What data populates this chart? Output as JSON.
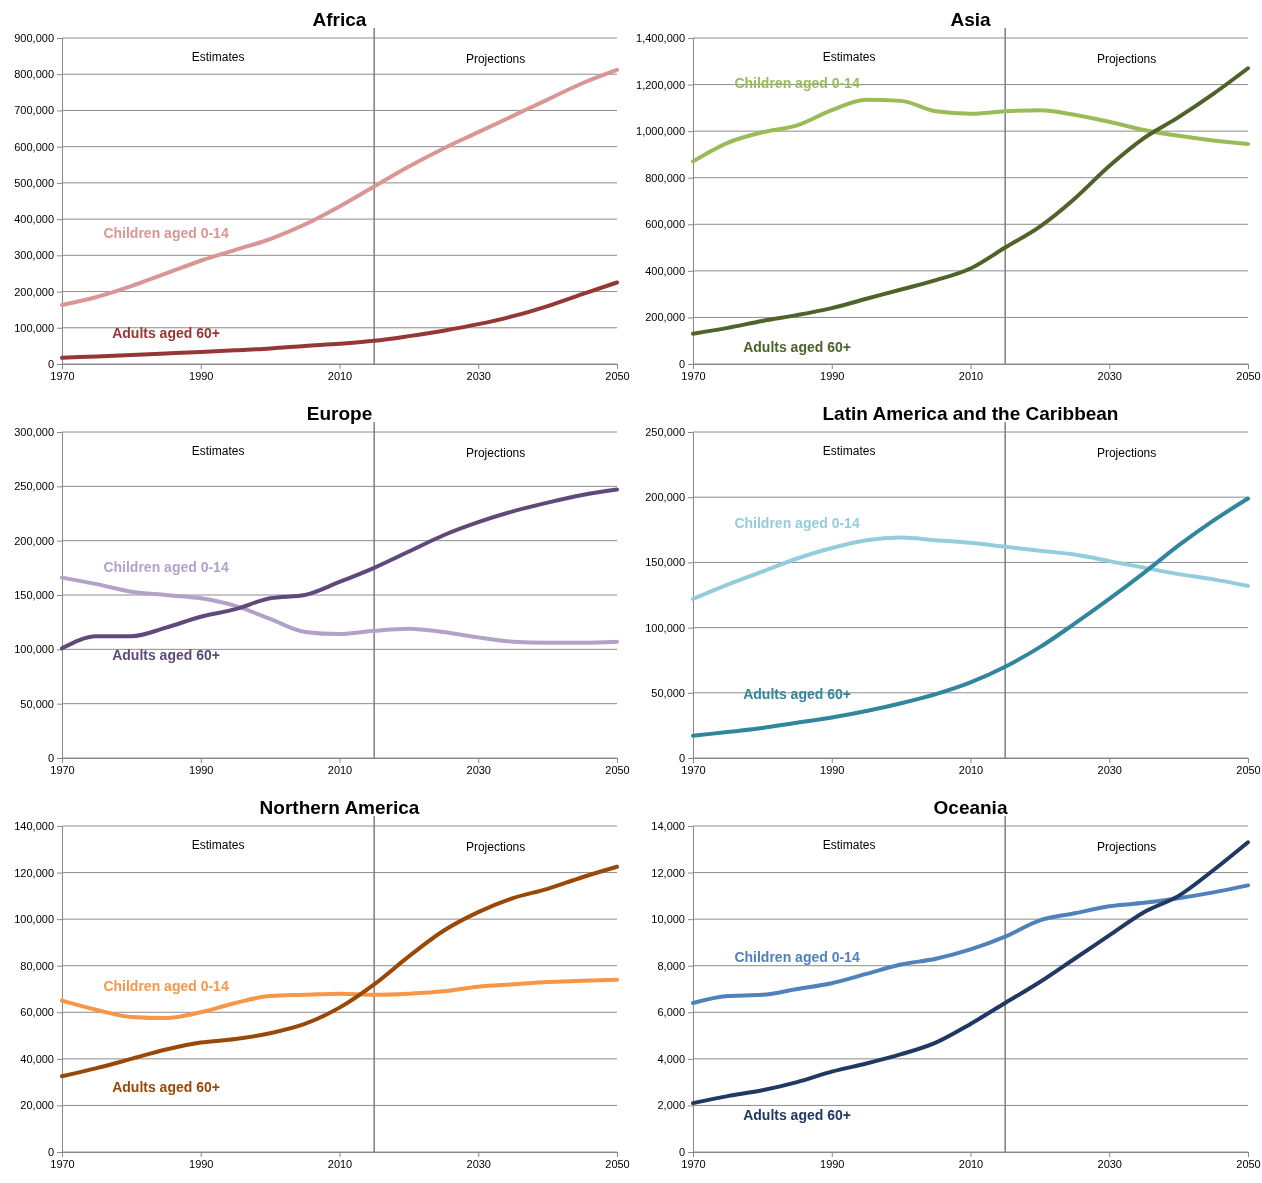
{
  "chart_data": [
    {
      "type": "line",
      "title": "Africa",
      "x": [
        1970,
        1975,
        1980,
        1985,
        1990,
        1995,
        2000,
        2005,
        2010,
        2015,
        2020,
        2025,
        2030,
        2035,
        2040,
        2045,
        2050
      ],
      "xlim": [
        1970,
        2050
      ],
      "xticks": [
        1970,
        1990,
        2010,
        2030,
        2050
      ],
      "ylim": [
        0,
        900000
      ],
      "yticks": [
        {
          "value": 0,
          "label": "0"
        },
        {
          "value": 100000,
          "label": "100,000"
        },
        {
          "value": 200000,
          "label": "200,000"
        },
        {
          "value": 300000,
          "label": "300,000"
        },
        {
          "value": 400000,
          "label": "400,000"
        },
        {
          "value": 500000,
          "label": "500,000"
        },
        {
          "value": 600000,
          "label": "600,000"
        },
        {
          "value": 700000,
          "label": "700,000"
        },
        {
          "value": 800000,
          "label": "800,000"
        },
        {
          "value": 900000,
          "label": "900,000"
        }
      ],
      "grid": "y",
      "legend": false,
      "marker": "none",
      "line_style": "solid",
      "ref_lines": [
        {
          "axis": "x",
          "value": 2015,
          "color": "#7f7f7f"
        }
      ],
      "annotations": [
        "Estimates",
        "Projections"
      ],
      "series": [
        {
          "name": "Children aged 0-14",
          "color": "#d99694",
          "values": [
            163000,
            185000,
            215000,
            250000,
            285000,
            315000,
            345000,
            385000,
            435000,
            490000,
            545000,
            595000,
            640000,
            685000,
            730000,
            775000,
            812000
          ]
        },
        {
          "name": "Adults aged 60+",
          "color": "#953735",
          "values": [
            17000,
            21000,
            25000,
            29000,
            33000,
            38000,
            43000,
            50000,
            56000,
            64000,
            77000,
            92000,
            110000,
            132000,
            160000,
            193000,
            225000
          ]
        }
      ]
    },
    {
      "type": "line",
      "title": "Asia",
      "x": [
        1970,
        1975,
        1980,
        1985,
        1990,
        1995,
        2000,
        2005,
        2010,
        2015,
        2020,
        2025,
        2030,
        2035,
        2040,
        2045,
        2050
      ],
      "xlim": [
        1970,
        2050
      ],
      "xticks": [
        1970,
        1990,
        2010,
        2030,
        2050
      ],
      "ylim": [
        0,
        1400000
      ],
      "yticks": [
        {
          "value": 0,
          "label": "0"
        },
        {
          "value": 200000,
          "label": "200,000"
        },
        {
          "value": 400000,
          "label": "400,000"
        },
        {
          "value": 600000,
          "label": "600,000"
        },
        {
          "value": 800000,
          "label": "800,000"
        },
        {
          "value": 1000000,
          "label": "1,000,000"
        },
        {
          "value": 1200000,
          "label": "1,200,000"
        },
        {
          "value": 1400000,
          "label": "1,400,000"
        }
      ],
      "grid": "y",
      "legend": false,
      "marker": "none",
      "line_style": "solid",
      "ref_lines": [
        {
          "axis": "x",
          "value": 2015,
          "color": "#7f7f7f"
        }
      ],
      "annotations": [
        "Estimates",
        "Projections"
      ],
      "series": [
        {
          "name": "Children aged 0-14",
          "color": "#9bbb59",
          "values": [
            870000,
            950000,
            995000,
            1025000,
            1090000,
            1135000,
            1130000,
            1085000,
            1075000,
            1085000,
            1090000,
            1070000,
            1040000,
            1005000,
            980000,
            960000,
            945000
          ]
        },
        {
          "name": "Adults aged 60+",
          "color": "#4f6228",
          "values": [
            130000,
            155000,
            185000,
            210000,
            240000,
            280000,
            320000,
            360000,
            410000,
            500000,
            590000,
            710000,
            850000,
            970000,
            1060000,
            1160000,
            1270000
          ]
        }
      ]
    },
    {
      "type": "line",
      "title": "Europe",
      "x": [
        1970,
        1975,
        1980,
        1985,
        1990,
        1995,
        2000,
        2005,
        2010,
        2015,
        2020,
        2025,
        2030,
        2035,
        2040,
        2045,
        2050
      ],
      "xlim": [
        1970,
        2050
      ],
      "xticks": [
        1970,
        1990,
        2010,
        2030,
        2050
      ],
      "ylim": [
        0,
        300000
      ],
      "yticks": [
        {
          "value": 0,
          "label": "0"
        },
        {
          "value": 50000,
          "label": "50,000"
        },
        {
          "value": 100000,
          "label": "100,000"
        },
        {
          "value": 150000,
          "label": "150,000"
        },
        {
          "value": 200000,
          "label": "200,000"
        },
        {
          "value": 250000,
          "label": "250,000"
        },
        {
          "value": 300000,
          "label": "300,000"
        }
      ],
      "grid": "y",
      "legend": false,
      "marker": "none",
      "line_style": "solid",
      "ref_lines": [
        {
          "axis": "x",
          "value": 2015,
          "color": "#7f7f7f"
        }
      ],
      "annotations": [
        "Estimates",
        "Projections"
      ],
      "series": [
        {
          "name": "Children aged 0-14",
          "color": "#b3a2c7",
          "values": [
            166000,
            160000,
            153000,
            150000,
            147000,
            140000,
            128000,
            116000,
            114000,
            117000,
            119000,
            116000,
            111000,
            107000,
            106000,
            106000,
            107000
          ]
        },
        {
          "name": "Adults aged 60+",
          "color": "#5f497a",
          "values": [
            101000,
            112000,
            112000,
            120000,
            130000,
            137000,
            147000,
            150000,
            162000,
            175000,
            190000,
            205000,
            217000,
            227000,
            235000,
            242000,
            247000
          ]
        }
      ]
    },
    {
      "type": "line",
      "title": "Latin America and the Caribbean",
      "x": [
        1970,
        1975,
        1980,
        1985,
        1990,
        1995,
        2000,
        2005,
        2010,
        2015,
        2020,
        2025,
        2030,
        2035,
        2040,
        2045,
        2050
      ],
      "xlim": [
        1970,
        2050
      ],
      "xticks": [
        1970,
        1990,
        2010,
        2030,
        2050
      ],
      "ylim": [
        0,
        250000
      ],
      "yticks": [
        {
          "value": 0,
          "label": "0"
        },
        {
          "value": 50000,
          "label": "50,000"
        },
        {
          "value": 100000,
          "label": "100,000"
        },
        {
          "value": 150000,
          "label": "150,000"
        },
        {
          "value": 200000,
          "label": "200,000"
        },
        {
          "value": 250000,
          "label": "250,000"
        }
      ],
      "grid": "y",
      "legend": false,
      "marker": "none",
      "line_style": "solid",
      "ref_lines": [
        {
          "axis": "x",
          "value": 2015,
          "color": "#7f7f7f"
        }
      ],
      "annotations": [
        "Estimates",
        "Projections"
      ],
      "series": [
        {
          "name": "Children aged 0-14",
          "color": "#93cddd",
          "values": [
            122000,
            133000,
            143000,
            153000,
            161000,
            167000,
            169000,
            167000,
            165000,
            162000,
            159000,
            156000,
            151000,
            146000,
            141000,
            137000,
            132000
          ]
        },
        {
          "name": "Adults aged 60+",
          "color": "#31859c",
          "values": [
            17000,
            20000,
            23000,
            27000,
            31000,
            36000,
            42000,
            49000,
            58000,
            70000,
            85000,
            103000,
            122000,
            142000,
            163000,
            182000,
            199000
          ]
        }
      ]
    },
    {
      "type": "line",
      "title": "Northern America",
      "x": [
        1970,
        1975,
        1980,
        1985,
        1990,
        1995,
        2000,
        2005,
        2010,
        2015,
        2020,
        2025,
        2030,
        2035,
        2040,
        2045,
        2050
      ],
      "xlim": [
        1970,
        2050
      ],
      "xticks": [
        1970,
        1990,
        2010,
        2030,
        2050
      ],
      "ylim": [
        0,
        140000
      ],
      "yticks": [
        {
          "value": 0,
          "label": "0"
        },
        {
          "value": 20000,
          "label": "20,000"
        },
        {
          "value": 40000,
          "label": "40,000"
        },
        {
          "value": 60000,
          "label": "60,000"
        },
        {
          "value": 80000,
          "label": "80,000"
        },
        {
          "value": 100000,
          "label": "100,000"
        },
        {
          "value": 120000,
          "label": "120,000"
        },
        {
          "value": 140000,
          "label": "140,000"
        }
      ],
      "grid": "y",
      "legend": false,
      "marker": "none",
      "line_style": "solid",
      "ref_lines": [
        {
          "axis": "x",
          "value": 2015,
          "color": "#7f7f7f"
        }
      ],
      "annotations": [
        "Estimates",
        "Projections"
      ],
      "series": [
        {
          "name": "Children aged 0-14",
          "color": "#f79646",
          "values": [
            65000,
            61000,
            58000,
            57500,
            60000,
            64000,
            67000,
            67500,
            68000,
            67500,
            68000,
            69000,
            71000,
            72000,
            73000,
            73500,
            74000
          ]
        },
        {
          "name": "Adults aged 60+",
          "color": "#984807",
          "values": [
            32500,
            36000,
            40000,
            44000,
            47000,
            48500,
            51000,
            55000,
            62000,
            72000,
            84000,
            95000,
            103000,
            109000,
            113000,
            118000,
            122500
          ]
        }
      ]
    },
    {
      "type": "line",
      "title": "Oceania",
      "x": [
        1970,
        1975,
        1980,
        1985,
        1990,
        1995,
        2000,
        2005,
        2010,
        2015,
        2020,
        2025,
        2030,
        2035,
        2040,
        2045,
        2050
      ],
      "xlim": [
        1970,
        2050
      ],
      "xticks": [
        1970,
        1990,
        2010,
        2030,
        2050
      ],
      "ylim": [
        0,
        14000
      ],
      "yticks": [
        {
          "value": 0,
          "label": "0"
        },
        {
          "value": 2000,
          "label": "2,000"
        },
        {
          "value": 4000,
          "label": "4,000"
        },
        {
          "value": 6000,
          "label": "6,000"
        },
        {
          "value": 8000,
          "label": "8,000"
        },
        {
          "value": 10000,
          "label": "10,000"
        },
        {
          "value": 12000,
          "label": "12,000"
        },
        {
          "value": 14000,
          "label": "14,000"
        }
      ],
      "grid": "y",
      "legend": false,
      "marker": "none",
      "line_style": "solid",
      "ref_lines": [
        {
          "axis": "x",
          "value": 2015,
          "color": "#7f7f7f"
        }
      ],
      "annotations": [
        "Estimates",
        "Projections"
      ],
      "series": [
        {
          "name": "Children aged 0-14",
          "color": "#4f81bd",
          "values": [
            6400,
            6700,
            6750,
            7000,
            7250,
            7650,
            8050,
            8300,
            8700,
            9250,
            9950,
            10250,
            10550,
            10700,
            10900,
            11150,
            11450
          ]
        },
        {
          "name": "Adults aged 60+",
          "color": "#1f3864",
          "values": [
            2100,
            2400,
            2650,
            3000,
            3450,
            3800,
            4200,
            4700,
            5500,
            6400,
            7300,
            8300,
            9300,
            10300,
            11000,
            12100,
            13300
          ]
        }
      ]
    }
  ]
}
